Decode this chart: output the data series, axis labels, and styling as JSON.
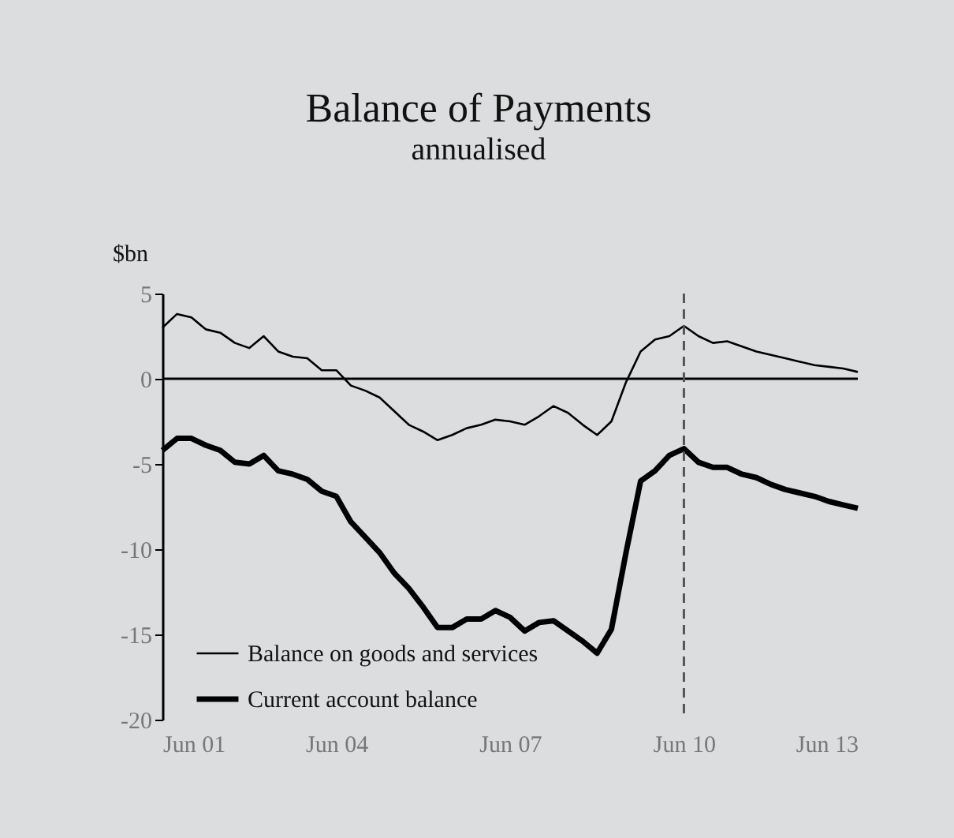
{
  "chart_data": {
    "type": "line",
    "title": "Balance of Payments",
    "subtitle": "annualised",
    "ylabel": "$bn",
    "x": [
      "2001-06",
      "2001-09",
      "2001-12",
      "2002-03",
      "2002-06",
      "2002-09",
      "2002-12",
      "2003-03",
      "2003-06",
      "2003-09",
      "2003-12",
      "2004-03",
      "2004-06",
      "2004-09",
      "2004-12",
      "2005-03",
      "2005-06",
      "2005-09",
      "2005-12",
      "2006-03",
      "2006-06",
      "2006-09",
      "2006-12",
      "2007-03",
      "2007-06",
      "2007-09",
      "2007-12",
      "2008-03",
      "2008-06",
      "2008-09",
      "2008-12",
      "2009-03",
      "2009-06",
      "2009-09",
      "2009-12",
      "2010-03",
      "2010-06",
      "2010-09",
      "2010-12",
      "2011-03",
      "2011-06",
      "2011-09",
      "2011-12",
      "2012-03",
      "2012-06",
      "2012-09",
      "2012-12",
      "2013-03",
      "2013-06"
    ],
    "series": [
      {
        "name": "Balance on goods and services",
        "color": "#000000",
        "values": [
          3.0,
          3.8,
          3.6,
          2.9,
          2.7,
          2.1,
          1.8,
          2.5,
          1.6,
          1.3,
          1.2,
          0.5,
          0.5,
          -0.4,
          -0.7,
          -1.1,
          -1.9,
          -2.7,
          -3.1,
          -3.6,
          -3.3,
          -2.9,
          -2.7,
          -2.4,
          -2.5,
          -2.7,
          -2.2,
          -1.6,
          -2.0,
          -2.7,
          -3.3,
          -2.5,
          -0.2,
          1.6,
          2.3,
          2.5,
          3.1,
          2.5,
          2.1,
          2.2,
          1.9,
          1.6,
          1.4,
          1.2,
          1.0,
          0.8,
          0.7,
          0.6,
          0.4
        ]
      },
      {
        "name": "Current account balance",
        "color": "#000000",
        "values": [
          -4.2,
          -3.5,
          -3.5,
          -3.9,
          -4.2,
          -4.9,
          -5.0,
          -4.5,
          -5.4,
          -5.6,
          -5.9,
          -6.6,
          -6.9,
          -8.4,
          -9.3,
          -10.2,
          -11.4,
          -12.3,
          -13.4,
          -14.6,
          -14.6,
          -14.1,
          -14.1,
          -13.6,
          -14.0,
          -14.8,
          -14.3,
          -14.2,
          -14.8,
          -15.4,
          -16.1,
          -14.7,
          -10.2,
          -6.0,
          -5.4,
          -4.5,
          -4.1,
          -4.9,
          -5.2,
          -5.2,
          -5.6,
          -5.8,
          -6.2,
          -6.5,
          -6.7,
          -6.9,
          -7.2,
          -7.4,
          -7.6
        ]
      }
    ],
    "xlim": [
      "2001-06",
      "2013-06"
    ],
    "xticks": [
      {
        "value": "2001-06",
        "label": "Jun 01"
      },
      {
        "value": "2004-06",
        "label": "Jun 04"
      },
      {
        "value": "2007-06",
        "label": "Jun 07"
      },
      {
        "value": "2010-06",
        "label": "Jun 10"
      },
      {
        "value": "2013-06",
        "label": "Jun 13"
      }
    ],
    "ylim": [
      -20,
      5
    ],
    "yticks": [
      -20,
      -15,
      -10,
      -5,
      0,
      5
    ],
    "ref_lines": [
      {
        "axis": "y",
        "value": 0,
        "color": "#000000",
        "line_style": "solid"
      },
      {
        "axis": "x",
        "value": "2010-06",
        "color": "#555555",
        "line_style": "dashed"
      }
    ],
    "grid": false,
    "legend": "bottom left",
    "marker": "none",
    "line_style": "solid"
  }
}
